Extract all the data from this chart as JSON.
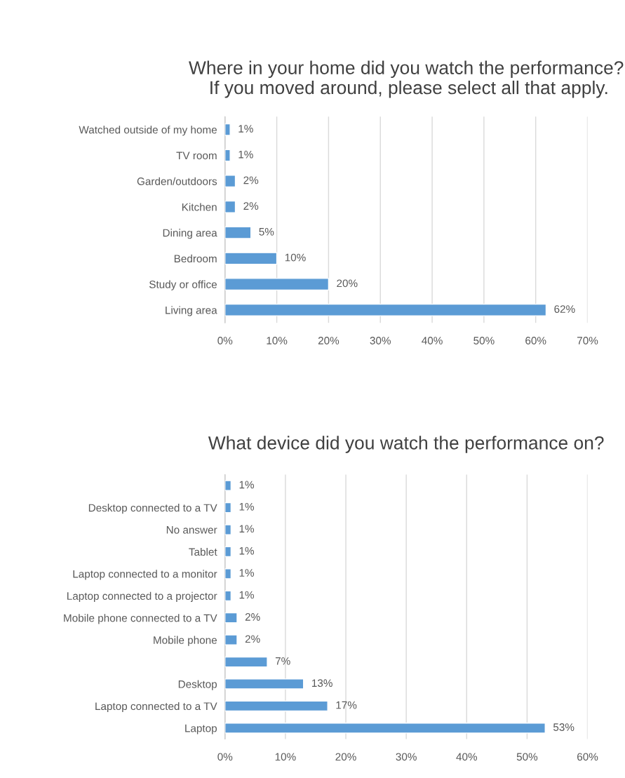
{
  "chart_data": [
    {
      "type": "bar",
      "orientation": "horizontal",
      "title": "Where in your home did you watch the performance?  If you moved around, please select all that apply.",
      "categories": [
        "Watched outside of my home",
        "TV room",
        "Garden/outdoors",
        "Kitchen",
        "Dining area",
        "Bedroom",
        "Study or office",
        "Living area"
      ],
      "values": [
        1,
        1,
        2,
        2,
        5,
        10,
        20,
        62
      ],
      "value_labels": [
        "1%",
        "1%",
        "2%",
        "2%",
        "5%",
        "10%",
        "20%",
        "62%"
      ],
      "color": "#5b9bd5",
      "xlim": [
        0,
        70
      ],
      "xticks": [
        {
          "value": 0,
          "label": "0%"
        },
        {
          "value": 10,
          "label": "10%"
        },
        {
          "value": 20,
          "label": "20%"
        },
        {
          "value": 30,
          "label": "30%"
        },
        {
          "value": 40,
          "label": "40%"
        },
        {
          "value": 50,
          "label": "50%"
        },
        {
          "value": 60,
          "label": "60%"
        },
        {
          "value": 70,
          "label": "70%"
        }
      ],
      "grid": "x",
      "legend": false
    },
    {
      "type": "bar",
      "orientation": "horizontal",
      "title": "What device did you watch the performance on?",
      "categories": [
        null,
        "Desktop connected to a TV",
        "No answer",
        "Tablet",
        "Laptop connected to a monitor",
        "Laptop connected to a projector",
        "Mobile phone connected to a TV",
        "Mobile phone",
        null,
        "Desktop",
        "Laptop connected to a TV",
        "Laptop"
      ],
      "values": [
        1,
        1,
        1,
        1,
        1,
        1,
        2,
        2,
        7,
        13,
        17,
        53
      ],
      "value_labels": [
        "1%",
        "1%",
        "1%",
        "1%",
        "1%",
        "1%",
        "2%",
        "2%",
        "7%",
        "13%",
        "17%",
        "53%"
      ],
      "color": "#5b9bd5",
      "xlim": [
        0,
        60
      ],
      "xticks": [
        {
          "value": 0,
          "label": "0%"
        },
        {
          "value": 10,
          "label": "10%"
        },
        {
          "value": 20,
          "label": "20%"
        },
        {
          "value": 30,
          "label": "30%"
        },
        {
          "value": 40,
          "label": "40%"
        },
        {
          "value": 50,
          "label": "50%"
        },
        {
          "value": 60,
          "label": "60%"
        }
      ],
      "grid": "x",
      "legend": false
    }
  ]
}
